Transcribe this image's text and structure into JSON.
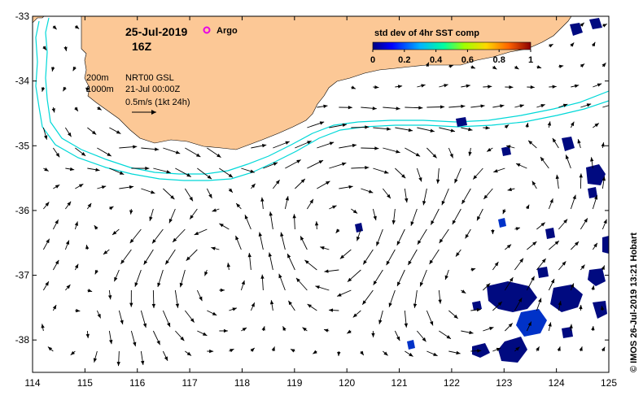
{
  "title": {
    "date": "25-Jul-2019",
    "hour": "16Z"
  },
  "legend": {
    "argo_label": "Argo",
    "argo_color": "#e600e6",
    "contour_200": "200m",
    "contour_1000": "1000m",
    "product": "NRT00 GSL",
    "product_date": "21-Jul 00:00Z",
    "scale_label": "0.5m/s (1kt 24h)"
  },
  "colorbar": {
    "title": "std dev of 4hr SST comp",
    "ticks": [
      "0",
      "0.2",
      "0.4",
      "0.6",
      "0.8",
      "1"
    ],
    "stops": [
      "#000080",
      "#0000ff",
      "#00b4ff",
      "#00ffa0",
      "#a0ff00",
      "#ffd700",
      "#ff6400",
      "#8b0000"
    ]
  },
  "credit": "© IMOS 26-Jul-2019 13:21 Hobart",
  "axes": {
    "x_ticks": [
      "114",
      "115",
      "116",
      "117",
      "118",
      "119",
      "120",
      "121",
      "122",
      "123",
      "124",
      "125"
    ],
    "y_ticks": [
      "-33",
      "-34",
      "-35",
      "-36",
      "-37",
      "-38"
    ],
    "lon_range": [
      114,
      125
    ],
    "lat_range": [
      -38.5,
      -33
    ]
  },
  "colors": {
    "land": "#fcc896",
    "contour": "#00d8d8",
    "sst_dark": "#000a80",
    "sst_mid": "#0032c8"
  }
}
